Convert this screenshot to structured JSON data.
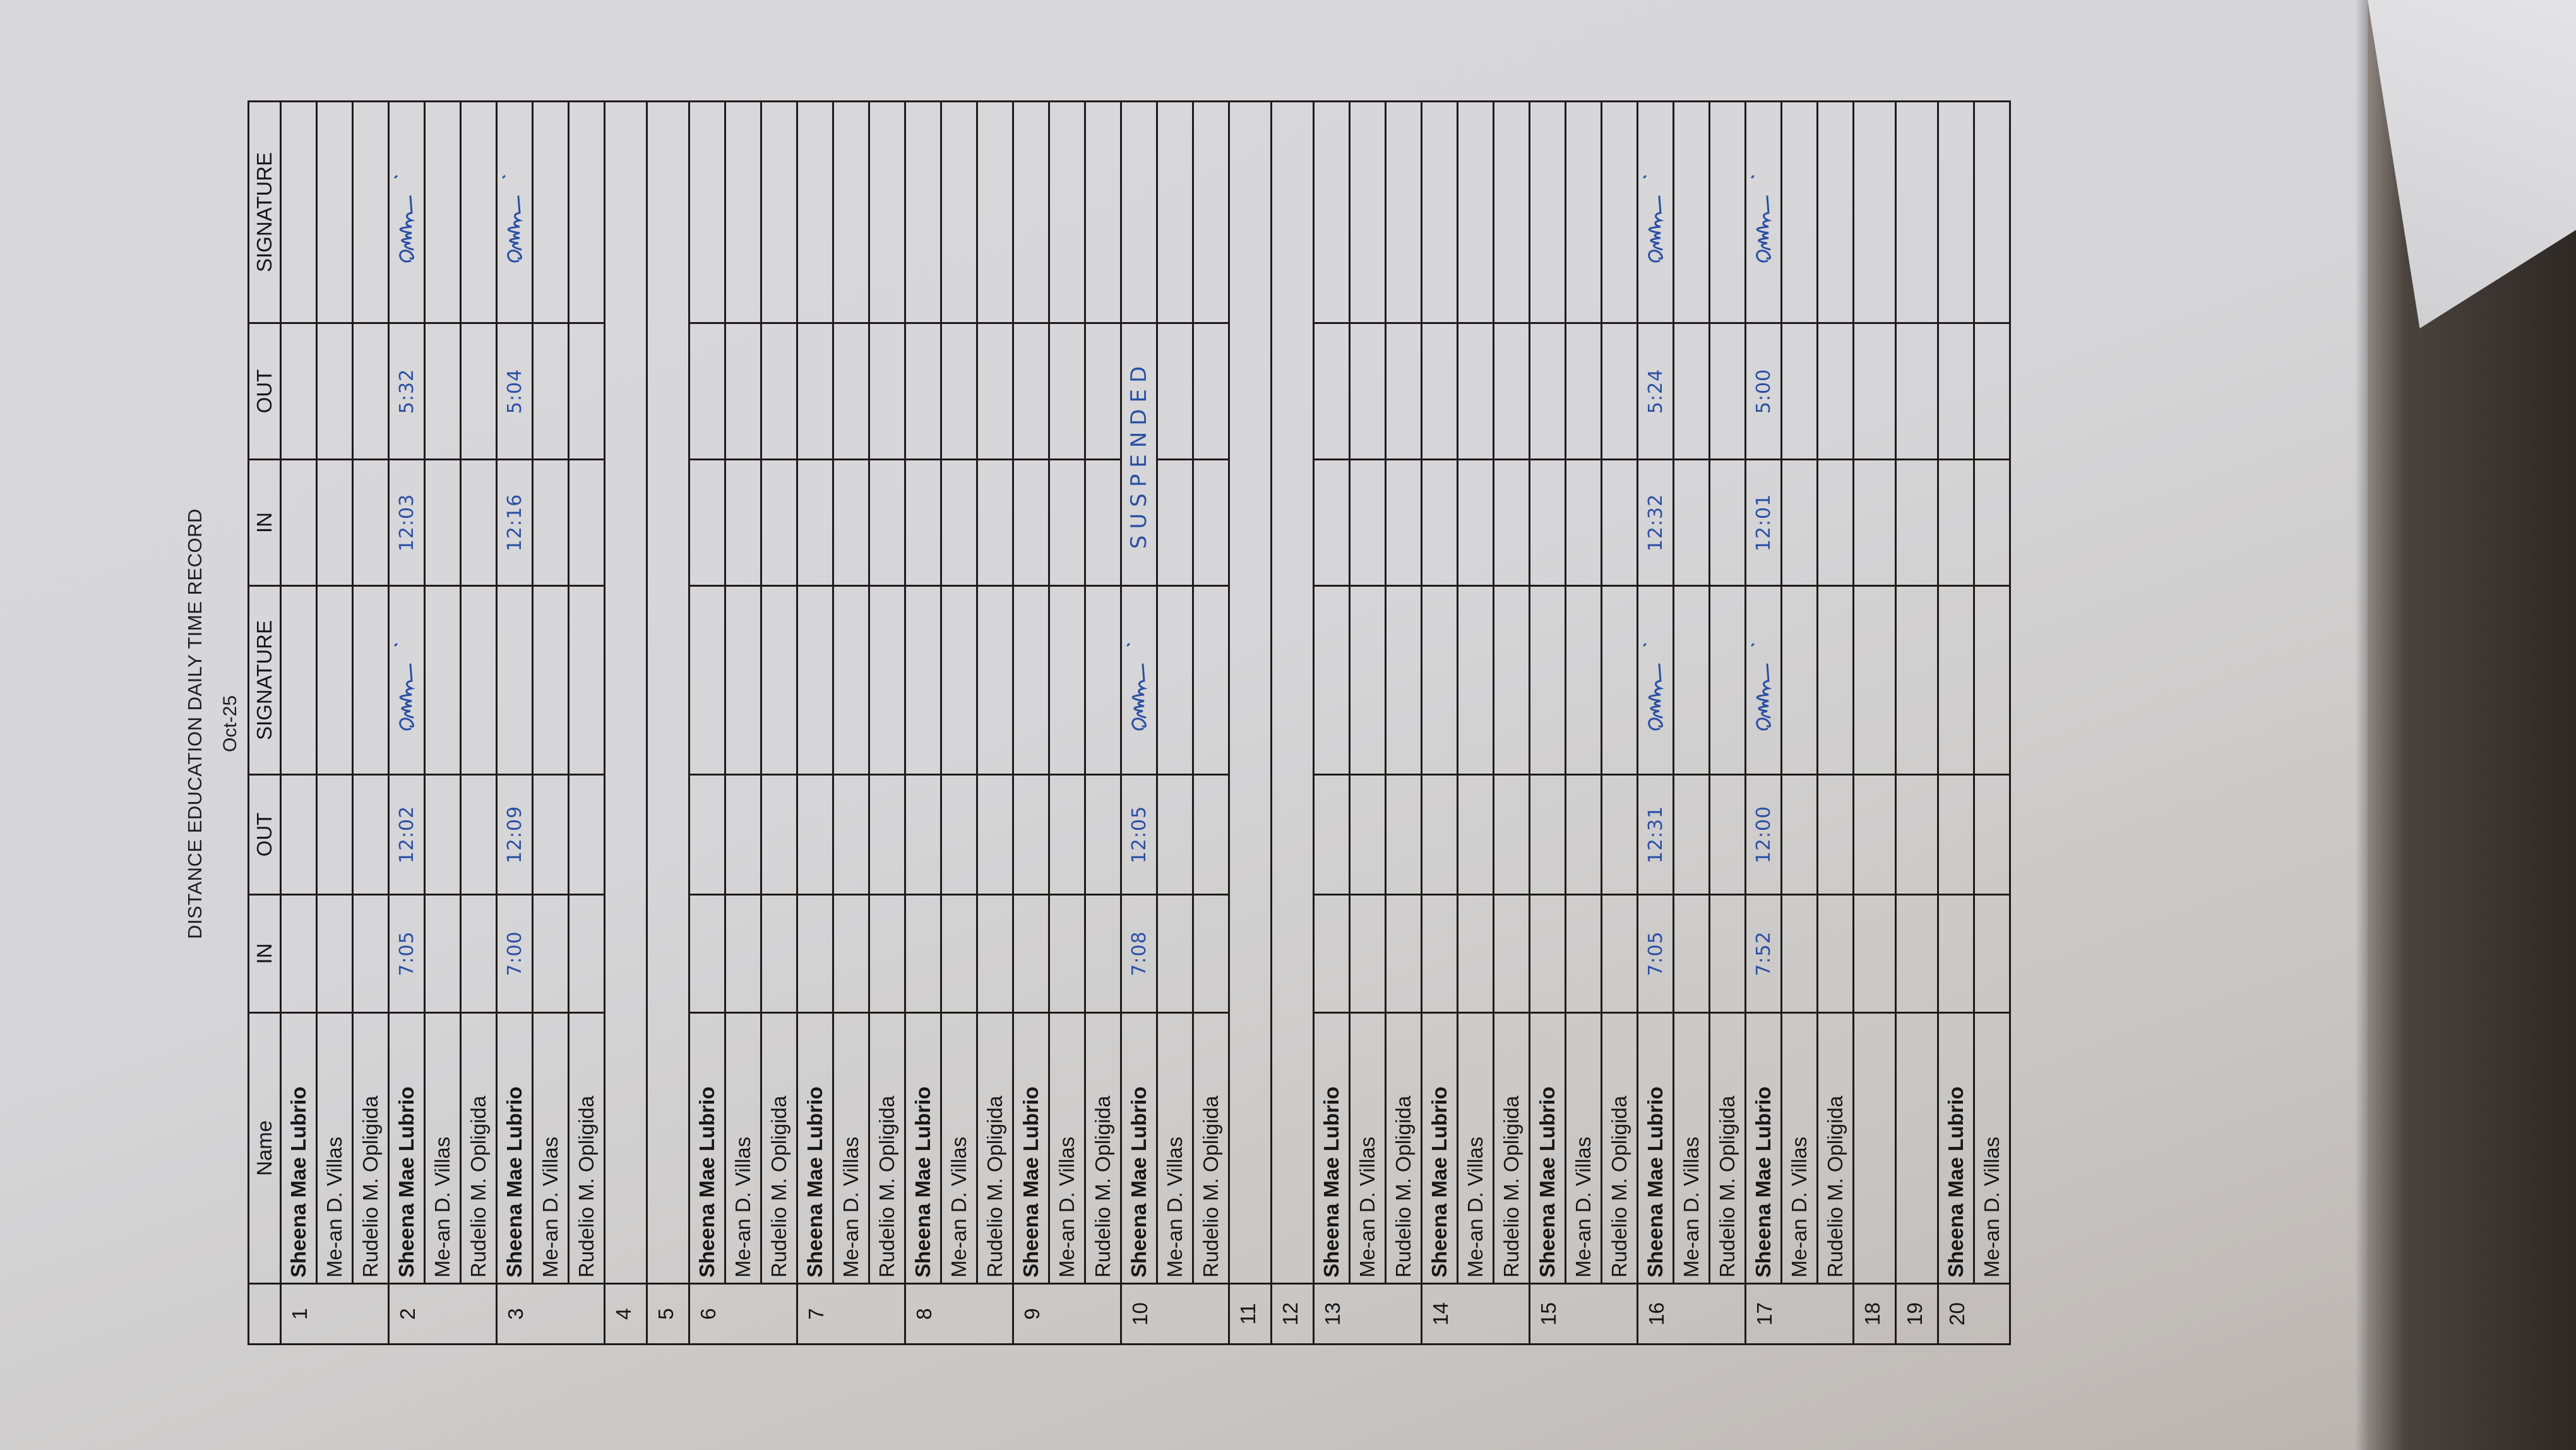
{
  "document": {
    "title": "DISTANCE EDUCATION DAILY TIME RECORD",
    "subtitle": "Oct-25",
    "ink_color": "#2b4fa3"
  },
  "table": {
    "headers": [
      "",
      "Name",
      "IN",
      "OUT",
      "SIGNATURE",
      "IN",
      "OUT",
      "SIGNATURE"
    ],
    "days": [
      {
        "day": "1",
        "entries": [
          {
            "name": "Sheena Mae Lubrio",
            "bold": true
          },
          {
            "name": "Me-an D. Villas"
          },
          {
            "name": "Rudelio M. Opligida"
          }
        ]
      },
      {
        "day": "2",
        "entries": [
          {
            "name": "Sheena Mae Lubrio",
            "bold": true,
            "am_in": "7:05",
            "am_out": "12:02",
            "am_signed": true,
            "pm_in": "12:03",
            "pm_out": "5:32",
            "pm_signed": true
          },
          {
            "name": "Me-an D. Villas"
          },
          {
            "name": "Rudelio M. Opligida"
          }
        ]
      },
      {
        "day": "3",
        "entries": [
          {
            "name": "Sheena Mae Lubrio",
            "bold": true,
            "am_in": "7:00",
            "am_out": "12:09",
            "pm_in": "12:16",
            "pm_out": "5:04",
            "pm_signed": true
          },
          {
            "name": "Me-an D. Villas"
          },
          {
            "name": "Rudelio M. Opligida"
          }
        ]
      },
      {
        "day": "4",
        "merged": true
      },
      {
        "day": "5",
        "merged": true
      },
      {
        "day": "6",
        "entries": [
          {
            "name": "Sheena Mae Lubrio",
            "bold": true
          },
          {
            "name": "Me-an D. Villas"
          },
          {
            "name": "Rudelio M. Opligida"
          }
        ]
      },
      {
        "day": "7",
        "entries": [
          {
            "name": "Sheena Mae Lubrio",
            "bold": true
          },
          {
            "name": "Me-an D. Villas"
          },
          {
            "name": "Rudelio M. Opligida"
          }
        ]
      },
      {
        "day": "8",
        "entries": [
          {
            "name": "Sheena Mae Lubrio",
            "bold": true
          },
          {
            "name": "Me-an D. Villas"
          },
          {
            "name": "Rudelio M. Opligida"
          }
        ]
      },
      {
        "day": "9",
        "entries": [
          {
            "name": "Sheena Mae Lubrio",
            "bold": true
          },
          {
            "name": "Me-an D. Villas"
          },
          {
            "name": "Rudelio M. Opligida"
          }
        ]
      },
      {
        "day": "10",
        "entries": [
          {
            "name": "Sheena Mae Lubrio",
            "bold": true,
            "am_in": "7:08",
            "am_out": "12:05",
            "am_signed": true,
            "pm_note": "SUSPENDED"
          },
          {
            "name": "Me-an D. Villas"
          },
          {
            "name": "Rudelio M. Opligida"
          }
        ]
      },
      {
        "day": "11",
        "merged": true
      },
      {
        "day": "12",
        "merged": true
      },
      {
        "day": "13",
        "entries": [
          {
            "name": "Sheena Mae Lubrio",
            "bold": true
          },
          {
            "name": "Me-an D. Villas"
          },
          {
            "name": "Rudelio M. Opligida"
          }
        ]
      },
      {
        "day": "14",
        "entries": [
          {
            "name": "Sheena Mae Lubrio",
            "bold": true
          },
          {
            "name": "Me-an D. Villas"
          },
          {
            "name": "Rudelio M. Opligida"
          }
        ]
      },
      {
        "day": "15",
        "entries": [
          {
            "name": "Sheena Mae Lubrio",
            "bold": true
          },
          {
            "name": "Me-an D. Villas"
          },
          {
            "name": "Rudelio M. Opligida"
          }
        ]
      },
      {
        "day": "16",
        "entries": [
          {
            "name": "Sheena Mae Lubrio",
            "bold": true,
            "am_in": "7:05",
            "am_out": "12:31",
            "am_signed": true,
            "pm_in": "12:32",
            "pm_out": "5:24",
            "pm_signed": true
          },
          {
            "name": "Me-an D. Villas"
          },
          {
            "name": "Rudelio M. Opligida"
          }
        ]
      },
      {
        "day": "17",
        "entries": [
          {
            "name": "Sheena Mae Lubrio",
            "bold": true,
            "am_in": "7:52",
            "am_out": "12:00",
            "am_signed": true,
            "pm_in": "12:01",
            "pm_out": "5:00",
            "pm_signed": true
          },
          {
            "name": "Me-an D. Villas"
          },
          {
            "name": "Rudelio M. Opligida"
          }
        ]
      },
      {
        "day": "18",
        "entries": [
          {
            "name": ""
          }
        ]
      },
      {
        "day": "19",
        "entries": [
          {
            "name": ""
          }
        ]
      },
      {
        "day": "20",
        "entries": [
          {
            "name": "Sheena Mae Lubrio",
            "bold": true
          },
          {
            "name": "Me-an D. Villas"
          }
        ]
      }
    ]
  }
}
